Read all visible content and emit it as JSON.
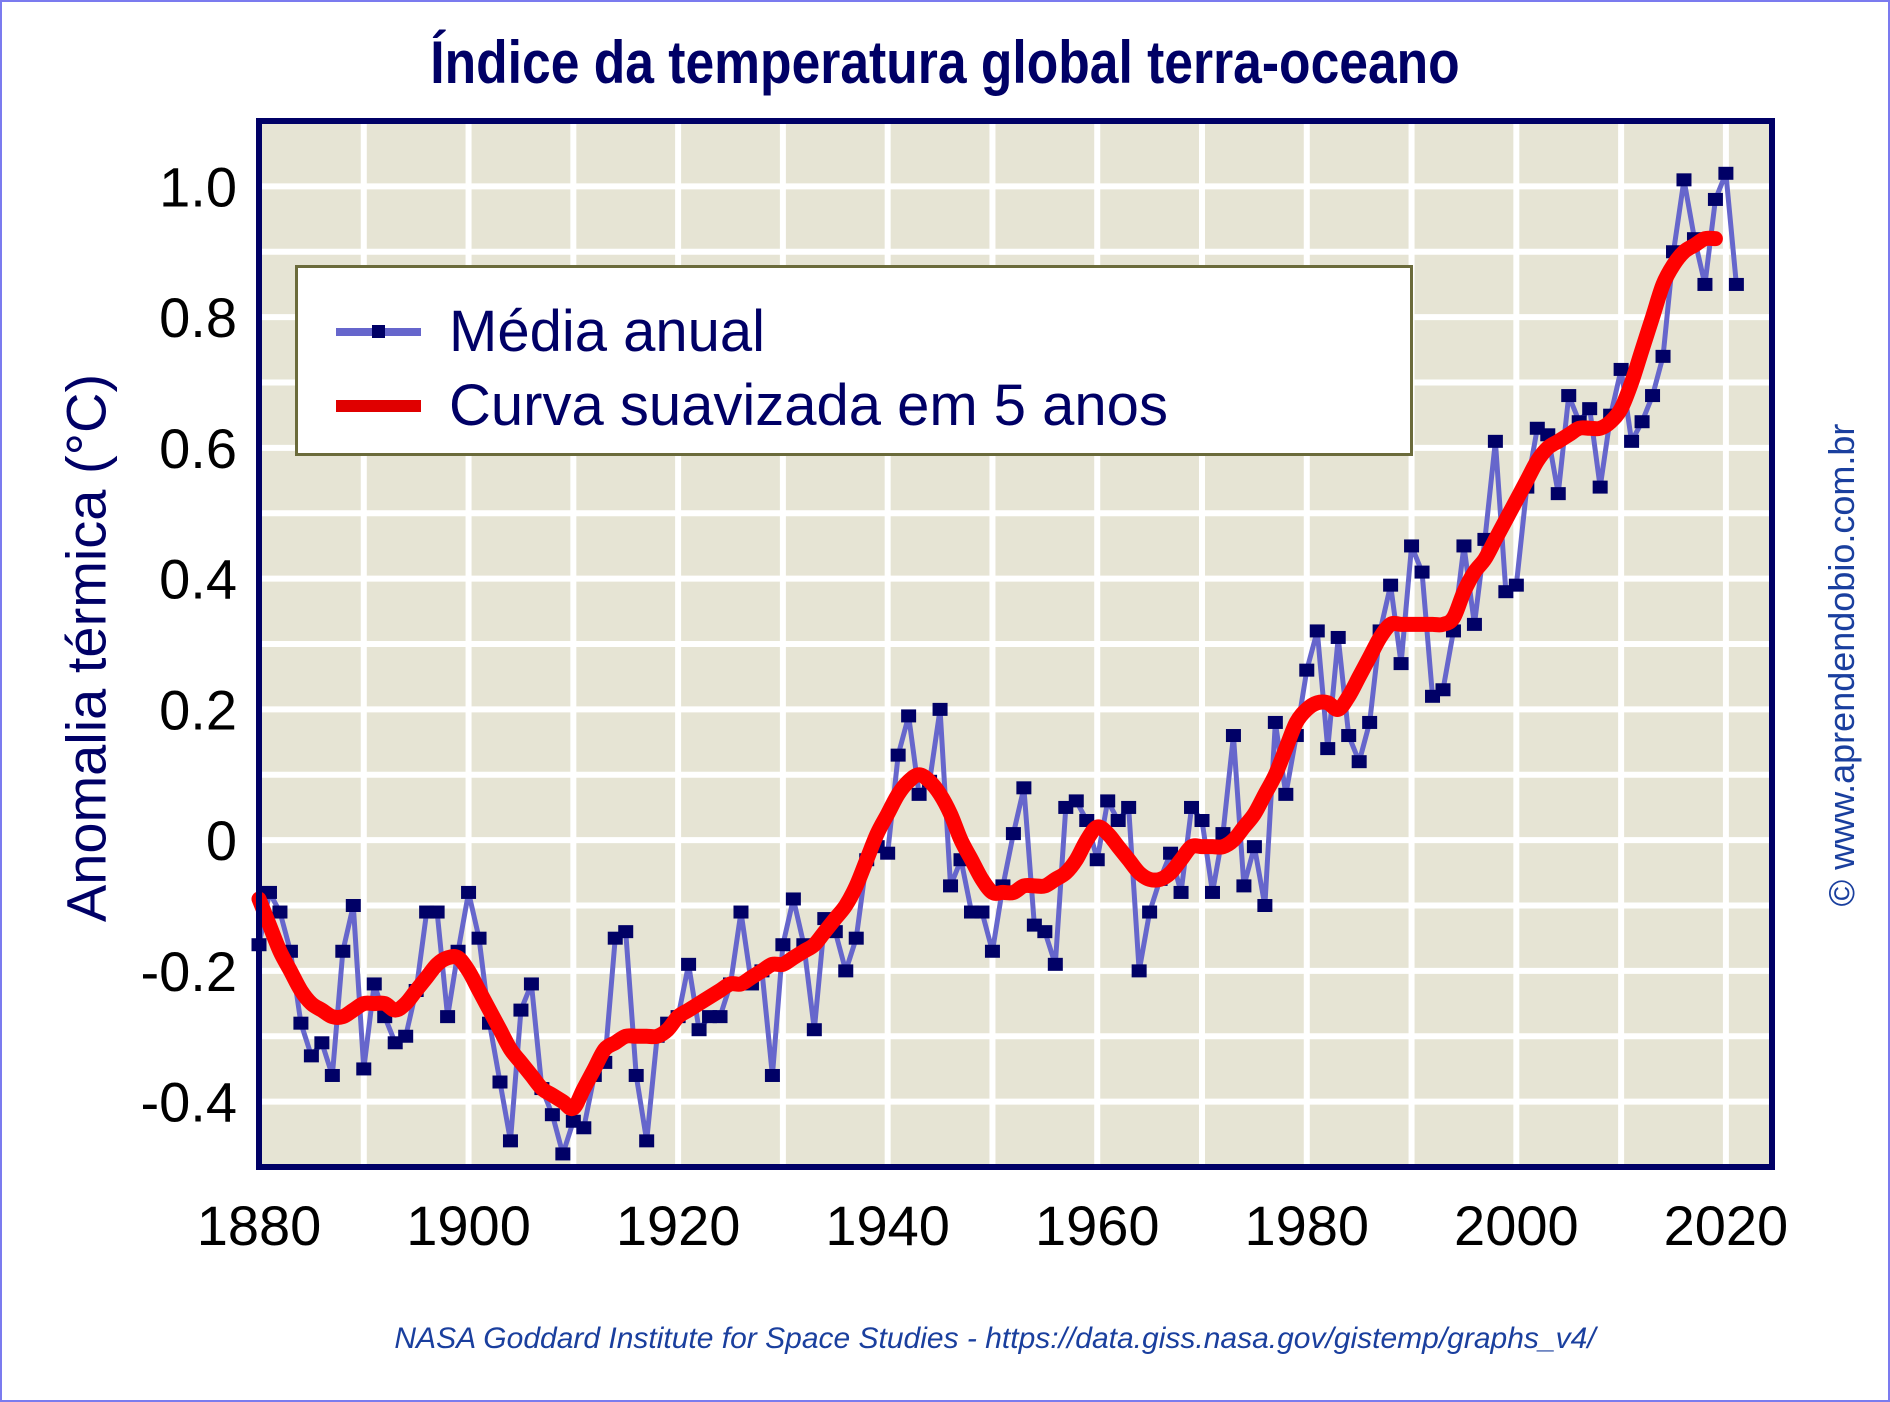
{
  "chart_data": {
    "type": "line",
    "title": "Índice da temperatura global terra-oceano",
    "xlabel": "",
    "ylabel": "Anomalia térmica (°C)",
    "xlim": [
      1880,
      2024.4
    ],
    "ylim": [
      -0.5,
      1.1
    ],
    "grid": true,
    "x_ticks": [
      1880,
      1900,
      1920,
      1940,
      1960,
      1980,
      2000,
      2020
    ],
    "x_tick_labels": [
      "1880",
      "1900",
      "1920",
      "1940",
      "1960",
      "1980",
      "2000",
      "2020"
    ],
    "y_ticks": [
      1.0,
      0.8,
      0.6,
      0.4,
      0.2,
      0,
      -0.2,
      -0.4
    ],
    "y_tick_labels": [
      "1.0",
      "0.8",
      "0.6",
      "0.4",
      "0.2",
      "0",
      "-0.2",
      "-0.4"
    ],
    "legend_position": "top-left",
    "x_start": 1880,
    "series": [
      {
        "name": "Média anual",
        "color": "#6666cc",
        "marker_color": "#000066",
        "values": [
          -0.16,
          -0.08,
          -0.11,
          -0.17,
          -0.28,
          -0.33,
          -0.31,
          -0.36,
          -0.17,
          -0.1,
          -0.35,
          -0.22,
          -0.27,
          -0.31,
          -0.3,
          -0.23,
          -0.11,
          -0.11,
          -0.27,
          -0.17,
          -0.08,
          -0.15,
          -0.28,
          -0.37,
          -0.46,
          -0.26,
          -0.22,
          -0.38,
          -0.42,
          -0.48,
          -0.43,
          -0.44,
          -0.36,
          -0.34,
          -0.15,
          -0.14,
          -0.36,
          -0.46,
          -0.3,
          -0.28,
          -0.27,
          -0.19,
          -0.29,
          -0.27,
          -0.27,
          -0.22,
          -0.11,
          -0.22,
          -0.2,
          -0.36,
          -0.16,
          -0.09,
          -0.16,
          -0.29,
          -0.12,
          -0.14,
          -0.2,
          -0.15,
          -0.03,
          -0.01,
          -0.02,
          0.13,
          0.19,
          0.07,
          0.09,
          0.2,
          -0.07,
          -0.03,
          -0.11,
          -0.11,
          -0.17,
          -0.07,
          0.01,
          0.08,
          -0.13,
          -0.14,
          -0.19,
          0.05,
          0.06,
          0.03,
          -0.03,
          0.06,
          0.03,
          0.05,
          -0.2,
          -0.11,
          -0.06,
          -0.02,
          -0.08,
          0.05,
          0.03,
          -0.08,
          0.01,
          0.16,
          -0.07,
          -0.01,
          -0.1,
          0.18,
          0.07,
          0.16,
          0.26,
          0.32,
          0.14,
          0.31,
          0.16,
          0.12,
          0.18,
          0.32,
          0.39,
          0.27,
          0.45,
          0.41,
          0.22,
          0.23,
          0.32,
          0.45,
          0.33,
          0.46,
          0.61,
          0.38,
          0.39,
          0.54,
          0.63,
          0.62,
          0.53,
          0.68,
          0.64,
          0.66,
          0.54,
          0.65,
          0.72,
          0.61,
          0.64,
          0.68,
          0.74,
          0.9,
          1.01,
          0.92,
          0.85,
          0.98,
          1.02,
          0.85
        ]
      },
      {
        "name": "Curva suavizada em 5 anos",
        "color": "#ff0000",
        "values": [
          -0.09,
          -0.13,
          -0.17,
          -0.2,
          -0.23,
          -0.25,
          -0.26,
          -0.27,
          -0.27,
          -0.26,
          -0.25,
          -0.25,
          -0.25,
          -0.26,
          -0.25,
          -0.23,
          -0.21,
          -0.19,
          -0.18,
          -0.18,
          -0.2,
          -0.23,
          -0.26,
          -0.29,
          -0.32,
          -0.34,
          -0.36,
          -0.38,
          -0.39,
          -0.4,
          -0.41,
          -0.38,
          -0.35,
          -0.32,
          -0.31,
          -0.3,
          -0.3,
          -0.3,
          -0.3,
          -0.29,
          -0.27,
          -0.26,
          -0.25,
          -0.24,
          -0.23,
          -0.22,
          -0.22,
          -0.21,
          -0.2,
          -0.19,
          -0.19,
          -0.18,
          -0.17,
          -0.16,
          -0.14,
          -0.12,
          -0.1,
          -0.07,
          -0.03,
          0.01,
          0.04,
          0.07,
          0.09,
          0.1,
          0.09,
          0.07,
          0.04,
          0.0,
          -0.03,
          -0.06,
          -0.08,
          -0.08,
          -0.08,
          -0.07,
          -0.07,
          -0.07,
          -0.06,
          -0.05,
          -0.03,
          0.0,
          0.02,
          0.01,
          -0.01,
          -0.03,
          -0.05,
          -0.06,
          -0.06,
          -0.05,
          -0.03,
          -0.01,
          -0.01,
          -0.01,
          -0.01,
          -0.0,
          0.02,
          0.04,
          0.07,
          0.1,
          0.14,
          0.18,
          0.2,
          0.21,
          0.21,
          0.2,
          0.22,
          0.25,
          0.28,
          0.31,
          0.33,
          0.33,
          0.33,
          0.33,
          0.33,
          0.33,
          0.34,
          0.38,
          0.41,
          0.43,
          0.46,
          0.49,
          0.52,
          0.55,
          0.58,
          0.6,
          0.61,
          0.62,
          0.63,
          0.63,
          0.63,
          0.64,
          0.66,
          0.7,
          0.75,
          0.8,
          0.85,
          0.88,
          0.9,
          0.91,
          0.92,
          0.92
        ]
      }
    ]
  },
  "page": {
    "title": "Índice da temperatura global terra-oceano",
    "ylabel": "Anomalia térmica (°C)",
    "legend": {
      "items": [
        "Média anual",
        "Curva suavizada em 5 anos"
      ]
    },
    "credit": "© www.aprendendobio.com.br",
    "source": "NASA Goddard Institute for Space Studies - https://data.giss.nasa.gov/gistemp/graphs_v4/"
  }
}
